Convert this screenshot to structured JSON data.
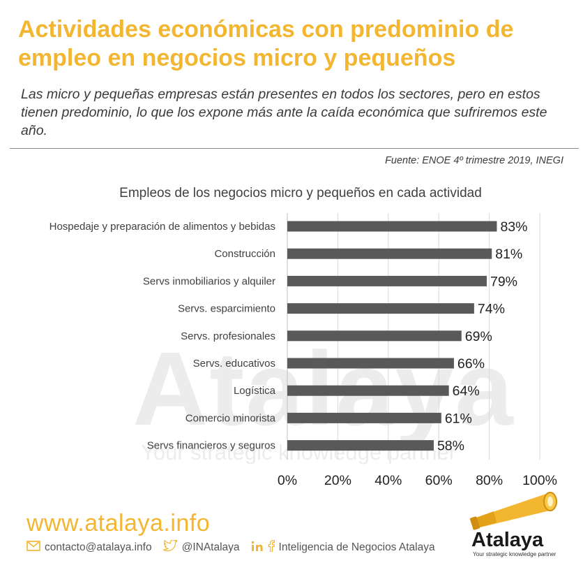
{
  "header": {
    "title": "Actividades económicas con predominio de empleo en negocios micro y pequeños",
    "subtitle": "Las micro y pequeñas empresas están presentes en todos los sectores, pero en estos tienen predominio, lo que los expone más ante la caída económica  que sufriremos este año.",
    "source": "Fuente: ENOE 4º trimestre 2019, INEGI"
  },
  "watermark": {
    "word": "Atalaya",
    "tagline": "Your strategic knowledge partner"
  },
  "chart_data": {
    "type": "bar",
    "orientation": "horizontal",
    "title": "Empleos de los negocios micro y pequeños en cada actividad",
    "categories": [
      "Hospedaje y preparación de alimentos y bebidas",
      "Construcción",
      "Servs inmobiliarios y alquiler",
      "Servs. esparcimiento",
      "Servs. profesionales",
      "Servs. educativos",
      "Logística",
      "Comercio minorista",
      "Servs financieros y seguros"
    ],
    "values": [
      83,
      81,
      79,
      74,
      69,
      66,
      64,
      61,
      58
    ],
    "value_labels": [
      "83%",
      "81%",
      "79%",
      "74%",
      "69%",
      "66%",
      "64%",
      "61%",
      "58%"
    ],
    "xlim": [
      0,
      100
    ],
    "x_ticks": [
      0,
      20,
      40,
      60,
      80,
      100
    ],
    "x_tick_labels": [
      "0%",
      "20%",
      "40%",
      "60%",
      "80%",
      "100%"
    ],
    "grid": true,
    "bar_color": "#595959"
  },
  "footer": {
    "website": "www.atalaya.info",
    "email": "contacto@atalaya.info",
    "email_icon": "envelope-icon",
    "twitter": "@INAtalaya",
    "twitter_icon": "twitter-icon",
    "social_icons": [
      "linkedin-icon",
      "facebook-icon"
    ],
    "company": "Inteligencia de Negocios Atalaya",
    "logo_name": "Atalaya",
    "logo_tagline": "Your strategic knowledge partner",
    "accent_color": "#f2b631"
  }
}
